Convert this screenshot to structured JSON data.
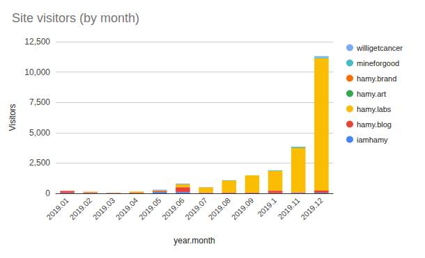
{
  "chart_data": {
    "type": "bar",
    "title": "Site visitors (by month)",
    "x_label": "year.month",
    "y_label": "Visitors",
    "categories": [
      "2019.01",
      "2019.02",
      "2019.03",
      "2019.04",
      "2019.05",
      "2019.06",
      "2019.07",
      "2019.08",
      "2019.09",
      "2019.1",
      "2019.11",
      "2019.12"
    ],
    "series": [
      {
        "name": "iamhamy",
        "color": "#4285f4",
        "values": [
          40,
          30,
          20,
          20,
          100,
          100,
          20,
          20,
          20,
          20,
          30,
          50
        ]
      },
      {
        "name": "hamy.blog",
        "color": "#ea4335",
        "values": [
          150,
          60,
          20,
          40,
          80,
          400,
          30,
          40,
          40,
          200,
          60,
          180
        ]
      },
      {
        "name": "hamy.labs",
        "color": "#fbbc04",
        "values": [
          0,
          50,
          20,
          90,
          50,
          250,
          450,
          1000,
          1420,
          1620,
          3650,
          10900
        ]
      },
      {
        "name": "hamy.art",
        "color": "#34a853",
        "values": [
          0,
          0,
          0,
          0,
          0,
          0,
          0,
          0,
          0,
          30,
          40,
          0
        ]
      },
      {
        "name": "hamy.brand",
        "color": "#ff6d01",
        "values": [
          20,
          0,
          0,
          0,
          0,
          0,
          0,
          0,
          0,
          0,
          0,
          0
        ]
      },
      {
        "name": "mineforgood",
        "color": "#46bdc6",
        "values": [
          0,
          0,
          0,
          0,
          0,
          0,
          0,
          30,
          0,
          30,
          50,
          80
        ]
      },
      {
        "name": "willigetcancer",
        "color": "#7baaf7",
        "values": [
          0,
          0,
          0,
          0,
          70,
          50,
          20,
          0,
          0,
          0,
          20,
          100
        ]
      }
    ],
    "ylim": [
      0,
      12500
    ],
    "yticks": [
      0,
      2500,
      5000,
      7500,
      10000,
      12500
    ],
    "stacked": true,
    "grid": true,
    "legend": "right"
  }
}
